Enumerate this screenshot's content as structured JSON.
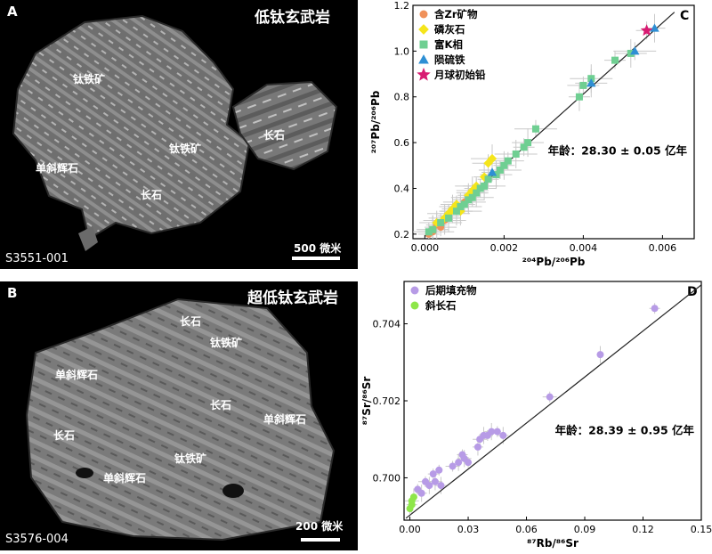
{
  "panel_a": {
    "letter": "A",
    "title": "低钛玄武岩",
    "sample": "S3551-001",
    "scale": "500 微米",
    "labels": [
      "钛铁矿",
      "钛铁矿",
      "长石",
      "单斜辉石",
      "长石"
    ]
  },
  "panel_b": {
    "letter": "B",
    "title": "超低钛玄武岩",
    "sample": "S3576-004",
    "scale": "200 微米",
    "labels": [
      "长石",
      "钛铁矿",
      "单斜辉石",
      "长石",
      "单斜辉石",
      "长石",
      "钛铁矿",
      "单斜辉石"
    ]
  },
  "colors": {
    "zr": "#f0915a",
    "apatite": "#f5e51b",
    "kglass": "#6fcf92",
    "troilite": "#2e8fd4",
    "initial_pb": "#d81b72",
    "late_fill": "#b79be6",
    "plagioclase": "#8ee64a",
    "line": "#222222"
  },
  "chart_data": [
    {
      "type": "scatter",
      "panel_letter": "C",
      "xlabel": "²⁰⁴Pb/²⁰⁶Pb",
      "ylabel": "²⁰⁷Pb/²⁰⁶Pb",
      "xlim": [
        -0.0003,
        0.0068
      ],
      "ylim": [
        0.18,
        1.2
      ],
      "xticks": [
        "0.000",
        "0.002",
        "0.004",
        "0.006"
      ],
      "yticks": [
        "0.2",
        "0.4",
        "0.6",
        "0.8",
        "1.0",
        "1.2"
      ],
      "legend_position": "top-left",
      "annotation": "年龄：28.30 ± 0.05 亿年",
      "fit_line": {
        "x": [
          0.0,
          0.0063
        ],
        "y": [
          0.19,
          1.17
        ]
      },
      "series": [
        {
          "name": "含Zr矿物",
          "marker": "circle",
          "x": [
            0.0001,
            0.0002,
            0.0002,
            0.0003,
            0.0004,
            0.0005,
            0.0006,
            0.0008,
            0.001,
            0.0011,
            0.0012
          ],
          "y": [
            0.2,
            0.22,
            0.21,
            0.24,
            0.23,
            0.26,
            0.28,
            0.3,
            0.34,
            0.36,
            0.38
          ]
        },
        {
          "name": "磷灰石",
          "marker": "diamond",
          "x": [
            0.0003,
            0.0005,
            0.0006,
            0.0007,
            0.0008,
            0.0009,
            0.0011,
            0.0012,
            0.0013,
            0.0015,
            0.0016,
            0.0017
          ],
          "y": [
            0.25,
            0.27,
            0.29,
            0.31,
            0.33,
            0.3,
            0.37,
            0.39,
            0.41,
            0.45,
            0.51,
            0.53
          ]
        },
        {
          "name": "富K相",
          "marker": "square",
          "x": [
            0.0001,
            0.0002,
            0.0004,
            0.0006,
            0.0008,
            0.0009,
            0.001,
            0.0011,
            0.0012,
            0.0013,
            0.0014,
            0.0015,
            0.0016,
            0.0018,
            0.0019,
            0.002,
            0.0021,
            0.0023,
            0.0025,
            0.0026,
            0.0028,
            0.0039,
            0.004,
            0.0042,
            0.0048,
            0.0052
          ],
          "y": [
            0.21,
            0.22,
            0.25,
            0.27,
            0.3,
            0.32,
            0.33,
            0.35,
            0.36,
            0.38,
            0.4,
            0.41,
            0.44,
            0.46,
            0.48,
            0.5,
            0.52,
            0.55,
            0.58,
            0.6,
            0.66,
            0.8,
            0.85,
            0.88,
            0.96,
            0.99
          ]
        },
        {
          "name": "陨硫铁",
          "marker": "triangle",
          "x": [
            0.0017,
            0.0042,
            0.0053,
            0.0058
          ],
          "y": [
            0.47,
            0.86,
            1.0,
            1.1
          ]
        },
        {
          "name": "月球初始铅",
          "marker": "star",
          "x": [
            0.0056
          ],
          "y": [
            1.09
          ]
        }
      ]
    },
    {
      "type": "scatter",
      "panel_letter": "D",
      "xlabel": "⁸⁷Rb/⁸⁶Sr",
      "ylabel": "⁸⁷Sr/⁸⁶Sr",
      "xlim": [
        -0.003,
        0.15
      ],
      "ylim": [
        0.6989,
        0.7051
      ],
      "xticks": [
        "0.00",
        "0.03",
        "0.06",
        "0.09",
        "0.12",
        "0.15"
      ],
      "yticks": [
        "0.700",
        "0.702",
        "0.704"
      ],
      "legend_position": "top-left",
      "annotation": "年龄：28.39 ± 0.95 亿年",
      "fit_line": {
        "x": [
          -0.002,
          0.15
        ],
        "y": [
          0.69895,
          0.70501
        ]
      },
      "series": [
        {
          "name": "后期填充物",
          "marker": "circle",
          "x": [
            0.004,
            0.006,
            0.008,
            0.01,
            0.012,
            0.013,
            0.015,
            0.016,
            0.022,
            0.025,
            0.027,
            0.028,
            0.03,
            0.035,
            0.036,
            0.038,
            0.04,
            0.042,
            0.045,
            0.048,
            0.072,
            0.098,
            0.126
          ],
          "y": [
            0.6997,
            0.6996,
            0.6999,
            0.6998,
            0.7001,
            0.6999,
            0.7002,
            0.6998,
            0.7003,
            0.7004,
            0.7006,
            0.7005,
            0.7004,
            0.7008,
            0.701,
            0.7011,
            0.7011,
            0.7012,
            0.7012,
            0.7011,
            0.7021,
            0.7032,
            0.7044
          ]
        },
        {
          "name": "斜长石",
          "marker": "circle",
          "x": [
            0.0,
            0.001,
            0.001,
            0.002
          ],
          "y": [
            0.6992,
            0.6993,
            0.6994,
            0.6995
          ]
        }
      ]
    }
  ]
}
